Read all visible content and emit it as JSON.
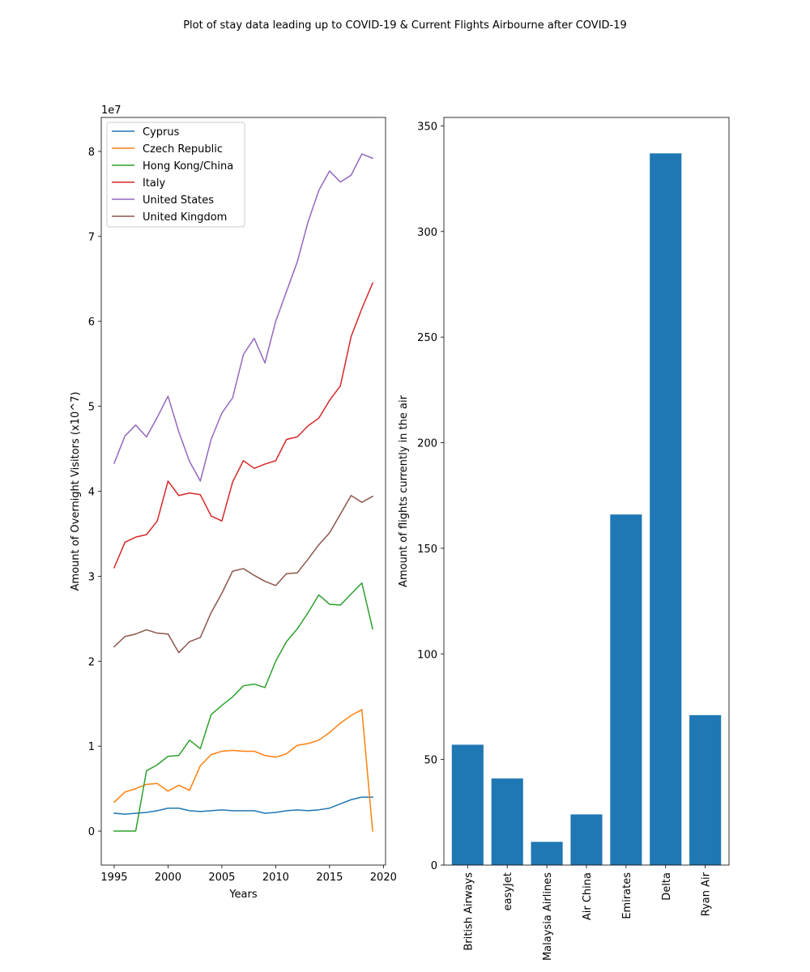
{
  "figure": {
    "suptitle": "Plot of stay data leading up to COVID-19 & Current Flights Airbourne after COVID-19"
  },
  "chart_data": [
    {
      "type": "line",
      "xlabel": "Years",
      "ylabel": "Amount of Overnight Visitors (x10^7)",
      "offset_text": "1e7",
      "xlim": [
        1993.8,
        2020.2
      ],
      "ylim": [
        -0.4,
        8.4
      ],
      "xticks": [
        1995,
        2000,
        2005,
        2010,
        2015,
        2020
      ],
      "yticks": [
        0,
        1,
        2,
        3,
        4,
        5,
        6,
        7,
        8
      ],
      "legend_position": "upper-left",
      "x": [
        1995,
        1996,
        1997,
        1998,
        1999,
        2000,
        2001,
        2002,
        2003,
        2004,
        2005,
        2006,
        2007,
        2008,
        2009,
        2010,
        2011,
        2012,
        2013,
        2014,
        2015,
        2016,
        2017,
        2018,
        2019
      ],
      "series": [
        {
          "name": "Cyprus",
          "color": "#1f77b4",
          "values": [
            0.21,
            0.2,
            0.21,
            0.22,
            0.24,
            0.27,
            0.27,
            0.24,
            0.23,
            0.24,
            0.25,
            0.24,
            0.24,
            0.24,
            0.21,
            0.22,
            0.24,
            0.25,
            0.24,
            0.25,
            0.27,
            0.32,
            0.37,
            0.4,
            0.4
          ]
        },
        {
          "name": "Czech Republic",
          "color": "#ff7f0e",
          "values": [
            0.34,
            0.46,
            0.5,
            0.55,
            0.56,
            0.47,
            0.54,
            0.48,
            0.77,
            0.9,
            0.94,
            0.95,
            0.94,
            0.94,
            0.89,
            0.87,
            0.91,
            1.01,
            1.03,
            1.07,
            1.16,
            1.27,
            1.36,
            1.43,
            0.0
          ]
        },
        {
          "name": "Hong Kong/China",
          "color": "#2ca02c",
          "values": [
            0.0,
            0.0,
            0.0,
            0.71,
            0.78,
            0.88,
            0.89,
            1.07,
            0.97,
            1.37,
            1.48,
            1.58,
            1.71,
            1.73,
            1.69,
            2.0,
            2.23,
            2.38,
            2.57,
            2.78,
            2.67,
            2.66,
            2.79,
            2.92,
            2.38
          ]
        },
        {
          "name": "Italy",
          "color": "#d62728",
          "values": [
            3.1,
            3.4,
            3.46,
            3.49,
            3.65,
            4.12,
            3.95,
            3.98,
            3.96,
            3.71,
            3.65,
            4.11,
            4.36,
            4.27,
            4.32,
            4.36,
            4.61,
            4.64,
            4.77,
            4.86,
            5.07,
            5.24,
            5.82,
            6.15,
            6.45
          ]
        },
        {
          "name": "United States",
          "color": "#9467bd",
          "values": [
            4.33,
            4.65,
            4.78,
            4.64,
            4.87,
            5.12,
            4.7,
            4.35,
            4.12,
            4.61,
            4.92,
            5.1,
            5.61,
            5.8,
            5.51,
            6.0,
            6.35,
            6.7,
            7.17,
            7.54,
            7.77,
            7.64,
            7.72,
            7.97,
            7.92
          ]
        },
        {
          "name": "United Kingdom",
          "color": "#8c564b",
          "values": [
            2.17,
            2.29,
            2.32,
            2.37,
            2.33,
            2.32,
            2.1,
            2.23,
            2.28,
            2.57,
            2.8,
            3.06,
            3.09,
            3.01,
            2.94,
            2.89,
            3.03,
            3.04,
            3.2,
            3.37,
            3.51,
            3.73,
            3.95,
            3.87,
            3.94
          ]
        }
      ]
    },
    {
      "type": "bar",
      "ylabel": "Amount of flights currently in the air",
      "xlabel": "",
      "ylim": [
        0,
        354
      ],
      "yticks": [
        0,
        50,
        100,
        150,
        200,
        250,
        300,
        350
      ],
      "bar_color": "#1f77b4",
      "categories": [
        "British Airways",
        "easyJet",
        "Malaysia Airlines",
        "Air China",
        "Emirates",
        "Delta",
        "Ryan Air"
      ],
      "values": [
        57,
        41,
        11,
        24,
        166,
        337,
        71
      ]
    }
  ]
}
